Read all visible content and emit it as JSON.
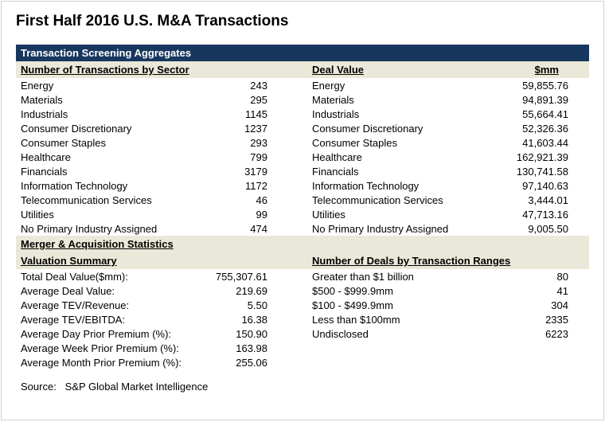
{
  "title": "First Half 2016 U.S. M&A Transactions",
  "banner1": "Transaction Screening Aggregates",
  "sectors_header": "Number of Transactions by Sector",
  "dealvalue_header": "Deal Value",
  "dealvalue_unit": "$mm",
  "sectors": [
    {
      "label": "Energy",
      "count": "243",
      "value": "59,855.76"
    },
    {
      "label": "Materials",
      "count": "295",
      "value": "94,891.39"
    },
    {
      "label": "Industrials",
      "count": "1145",
      "value": "55,664.41"
    },
    {
      "label": "Consumer Discretionary",
      "count": "1237",
      "value": "52,326.36"
    },
    {
      "label": "Consumer Staples",
      "count": "293",
      "value": "41,603.44"
    },
    {
      "label": "Healthcare",
      "count": "799",
      "value": "162,921.39"
    },
    {
      "label": "Financials",
      "count": "3179",
      "value": "130,741.58"
    },
    {
      "label": "Information Technology",
      "count": "1172",
      "value": "97,140.63"
    },
    {
      "label": "Telecommunication Services",
      "count": "46",
      "value": "3,444.01"
    },
    {
      "label": "Utilities",
      "count": "99",
      "value": "47,713.16"
    },
    {
      "label": "No Primary Industry Assigned",
      "count": "474",
      "value": "9,005.50"
    }
  ],
  "ma_stats_header": "Merger & Acquisition Statistics",
  "valuation_header": "Valuation Summary",
  "deals_range_header": "Number of Deals by Transaction Ranges",
  "valuation": [
    {
      "label": "Total Deal Value($mm):",
      "value": "755,307.61"
    },
    {
      "label": "Average Deal Value:",
      "value": "219.69"
    },
    {
      "label": "Average TEV/Revenue:",
      "value": "5.50"
    },
    {
      "label": "Average TEV/EBITDA:",
      "value": "16.38"
    },
    {
      "label": "Average Day Prior Premium (%):",
      "value": "150.90"
    },
    {
      "label": "Average Week Prior Premium (%):",
      "value": "163.98"
    },
    {
      "label": "Average Month Prior Premium (%):",
      "value": "255.06"
    }
  ],
  "ranges": [
    {
      "label": "Greater than $1 billion",
      "value": "80"
    },
    {
      "label": "$500 - $999.9mm",
      "value": "41"
    },
    {
      "label": "$100 - $499.9mm",
      "value": "304"
    },
    {
      "label": "Less than $100mm",
      "value": "2335"
    },
    {
      "label": "Undisclosed",
      "value": "6223"
    }
  ],
  "source_label": "Source:",
  "source_value": "S&P Global Market Intelligence",
  "colors": {
    "banner_bg": "#18375f",
    "section_bg": "#eae9d9",
    "border": "#d0d0d0",
    "text": "#000000",
    "banner_text": "#ffffff"
  }
}
